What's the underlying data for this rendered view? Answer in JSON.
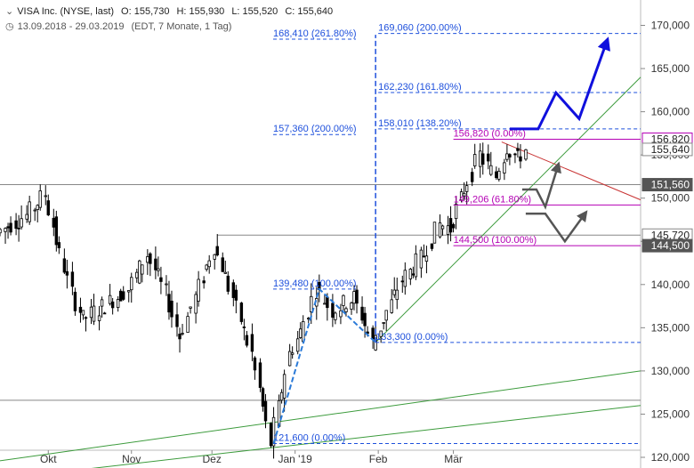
{
  "header": {
    "expand_icon": "chevron-down-icon",
    "title": "VISA Inc. (NYSE, last)",
    "open": "O: 155,730",
    "high": "H: 155,930",
    "low": "L: 155,520",
    "close": "C: 155,640",
    "clock_icon": "clock-icon",
    "range": "13.09.2018 - 29.03.2019",
    "meta": "(EDT, 7 Monate, 1 Tag)"
  },
  "chart_data": {
    "type": "candlestick",
    "ylim": [
      119.5,
      172.5
    ],
    "y_ticks": [
      {
        "value": 120,
        "label": "120,000"
      },
      {
        "value": 125,
        "label": "125,000"
      },
      {
        "value": 130,
        "label": "130,000"
      },
      {
        "value": 135,
        "label": "135,000"
      },
      {
        "value": 140,
        "label": "140,000"
      },
      {
        "value": 145,
        "label": "145,000"
      },
      {
        "value": 150,
        "label": "150,000"
      },
      {
        "value": 155,
        "label": "155,000"
      },
      {
        "value": 160,
        "label": "160,000"
      },
      {
        "value": 165,
        "label": "165,000"
      },
      {
        "value": 170,
        "label": "170,000"
      }
    ],
    "x_labels": [
      {
        "label": "Okt",
        "date": "2018-10-01"
      },
      {
        "label": "Nov",
        "date": "2018-11-01"
      },
      {
        "label": "Dez",
        "date": "2018-12-01"
      },
      {
        "label": "Jan '19",
        "date": "2019-01-01"
      },
      {
        "label": "Feb",
        "date": "2019-02-01"
      },
      {
        "label": "Mär",
        "date": "2019-03-01"
      }
    ],
    "price_path": [
      {
        "date": "2018-09-13",
        "close": 146.0
      },
      {
        "date": "2018-09-24",
        "close": 148.0
      },
      {
        "date": "2018-10-01",
        "close": 150.5
      },
      {
        "date": "2018-10-05",
        "close": 145.0
      },
      {
        "date": "2018-10-11",
        "close": 139.0
      },
      {
        "date": "2018-10-15",
        "close": 136.0
      },
      {
        "date": "2018-10-25",
        "close": 138.0
      },
      {
        "date": "2018-11-01",
        "close": 139.5
      },
      {
        "date": "2018-11-08",
        "close": 143.5
      },
      {
        "date": "2018-11-15",
        "close": 139.0
      },
      {
        "date": "2018-11-20",
        "close": 134.0
      },
      {
        "date": "2018-11-26",
        "close": 138.5
      },
      {
        "date": "2018-12-03",
        "close": 144.5
      },
      {
        "date": "2018-12-10",
        "close": 138.5
      },
      {
        "date": "2018-12-17",
        "close": 132.0
      },
      {
        "date": "2018-12-24",
        "close": 121.6
      },
      {
        "date": "2018-12-31",
        "close": 132.0
      },
      {
        "date": "2019-01-04",
        "close": 134.5
      },
      {
        "date": "2019-01-10",
        "close": 139.48
      },
      {
        "date": "2019-01-16",
        "close": 137.0
      },
      {
        "date": "2019-01-24",
        "close": 138.5
      },
      {
        "date": "2019-01-31",
        "close": 133.3
      },
      {
        "date": "2019-02-04",
        "close": 136.0
      },
      {
        "date": "2019-02-11",
        "close": 140.5
      },
      {
        "date": "2019-02-19",
        "close": 143.5
      },
      {
        "date": "2019-02-25",
        "close": 147.0
      },
      {
        "date": "2019-03-01",
        "close": 146.5
      },
      {
        "date": "2019-03-06",
        "close": 151.0
      },
      {
        "date": "2019-03-12",
        "close": 155.0
      },
      {
        "date": "2019-03-18",
        "close": 152.5
      },
      {
        "date": "2019-03-22",
        "close": 156.0
      },
      {
        "date": "2019-03-26",
        "close": 154.5
      },
      {
        "date": "2019-03-29",
        "close": 155.64
      }
    ],
    "right_price_tags": [
      {
        "value": 156.82,
        "label": "156,820"
      },
      {
        "value": 155.64,
        "label": "155,640"
      },
      {
        "value": 151.56,
        "label": "151,560"
      },
      {
        "value": 145.72,
        "label": "145,720"
      },
      {
        "value": 144.5,
        "label": "144,500"
      }
    ],
    "annotations": [
      {
        "label": "169,060 (200.00%)",
        "value": 169.06
      },
      {
        "label": "168,410 (261.80%)",
        "value": 168.41
      },
      {
        "label": "162,230 (161.80%)",
        "value": 162.23
      },
      {
        "label": "158,010 (138.20%)",
        "value": 158.01
      },
      {
        "label": "157,360 (200.00%)",
        "value": 157.36
      },
      {
        "label": "156,820 (0.00%)",
        "value": 156.82
      },
      {
        "label": "149,206 (61.80%)",
        "value": 149.206
      },
      {
        "label": "144,500 (100.00%)",
        "value": 144.5
      },
      {
        "label": "139,480 (100.00%)",
        "value": 139.48
      },
      {
        "label": "133,300 (0.00%)",
        "value": 133.3
      },
      {
        "label": "121,600 (0.00%)",
        "value": 121.6
      }
    ],
    "horizontal_levels": [
      126.6,
      145.72,
      151.56
    ],
    "colors": {
      "candle": "#000000",
      "fib_blue": "#1e50dc",
      "fib_magenta": "#b400b4",
      "trend_green": "#3c9b3c",
      "resistance_red": "#c83232",
      "projection_blue": "#1010dd",
      "scenario_gray": "#555555",
      "tag_dark": "#555555"
    }
  }
}
